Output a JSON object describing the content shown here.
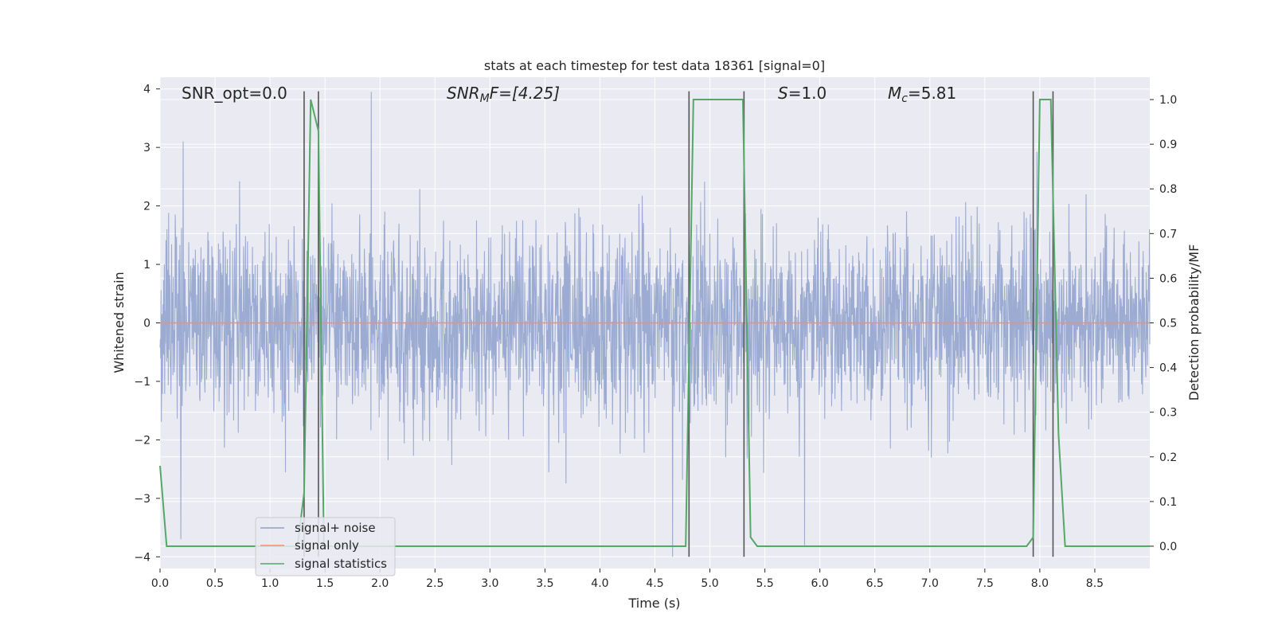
{
  "chart_data": {
    "type": "line",
    "title": "stats at each timestep for test data 18361 [signal=0]",
    "xlabel": "Time (s)",
    "ylabel": "Whitened strain",
    "ylabel_right": "Detection probability/MF",
    "xlim": [
      0,
      9.0
    ],
    "ylim": [
      -4.2,
      4.2
    ],
    "ylim_right": [
      -0.05,
      1.05
    ],
    "x_ticks": [
      0.0,
      0.5,
      1.0,
      1.5,
      2.0,
      2.5,
      3.0,
      3.5,
      4.0,
      4.5,
      5.0,
      5.5,
      6.0,
      6.5,
      7.0,
      7.5,
      8.0,
      8.5
    ],
    "x_tick_labels": [
      "0.0",
      "0.5",
      "1.0",
      "1.5",
      "2.0",
      "2.5",
      "3.0",
      "3.5",
      "4.0",
      "4.5",
      "5.0",
      "5.5",
      "6.0",
      "6.5",
      "7.0",
      "7.5",
      "8.0",
      "8.5"
    ],
    "y_ticks": [
      4,
      3,
      2,
      1,
      0,
      -1,
      -2,
      -3,
      -4
    ],
    "y_tick_labels": [
      "4",
      "3",
      "2",
      "1",
      "0",
      "−1",
      "−2",
      "−3",
      "−4"
    ],
    "y_right_ticks": [
      1.0,
      0.9,
      0.8,
      0.7,
      0.6,
      0.5,
      0.4,
      0.3,
      0.2,
      0.1,
      0.0
    ],
    "y_right_tick_labels": [
      "1.0",
      "0.9",
      "0.8",
      "0.7",
      "0.6",
      "0.5",
      "0.4",
      "0.3",
      "0.2",
      "0.1",
      "0.0"
    ],
    "grid": true,
    "legend_position": "lower-left",
    "annotations": {
      "snr_opt": "SNR_opt=0.0",
      "snr_mf_main": "SNR",
      "snr_mf_sub": "M",
      "snr_mf_rest": "F=[4.25]",
      "s_main": "S",
      "s_rest": "=1.0",
      "mc_main": "M",
      "mc_sub": "c",
      "mc_rest": "=5.81"
    },
    "series": [
      {
        "name": "signal+ noise",
        "color": "#8da0cb",
        "description_values": {
          "noise_sigma": 0.8,
          "peak_max": 3.95,
          "peak_min": -4.0,
          "notable_spikes": [
            {
              "x": 0.21,
              "y": 3.1
            },
            {
              "x": 1.92,
              "y": 3.95
            },
            {
              "x": 0.19,
              "y": -3.7
            },
            {
              "x": 4.66,
              "y": -4.0
            },
            {
              "x": 5.86,
              "y": -3.8
            }
          ]
        }
      },
      {
        "name": "signal only",
        "color": "#fc8d62",
        "x": [
          0.0,
          9.0
        ],
        "y": [
          0.0,
          0.0
        ]
      },
      {
        "name": "signal statistics",
        "color": "#55a868",
        "axis": "right",
        "x": [
          0.0,
          0.06,
          0.12,
          1.25,
          1.31,
          1.37,
          1.44,
          1.49,
          1.55,
          4.72,
          4.78,
          4.85,
          5.3,
          5.37,
          5.43,
          7.88,
          7.94,
          8.0,
          8.1,
          8.17,
          8.23,
          9.0
        ],
        "y": [
          0.18,
          0.0,
          0.0,
          0.0,
          0.12,
          1.0,
          0.93,
          0.0,
          0.0,
          0.0,
          0.0,
          1.0,
          1.0,
          0.02,
          0.0,
          0.0,
          0.02,
          1.0,
          1.0,
          0.25,
          0.0,
          0.0
        ]
      }
    ],
    "vertical_markers": [
      {
        "x": 1.31,
        "y0": 3.96,
        "y1": -4.0
      },
      {
        "x": 1.44,
        "y0": 3.96,
        "y1": -4.0
      },
      {
        "x": 4.81,
        "y0": 3.96,
        "y1": -4.0
      },
      {
        "x": 5.31,
        "y0": 3.96,
        "y1": -4.0
      },
      {
        "x": 7.94,
        "y0": 3.96,
        "y1": -4.0
      },
      {
        "x": 8.12,
        "y0": 3.96,
        "y1": -4.0
      }
    ],
    "colors": {
      "axes_bg": "#eaeaf2",
      "grid": "#ffffff",
      "marker_line": "#555555"
    }
  }
}
